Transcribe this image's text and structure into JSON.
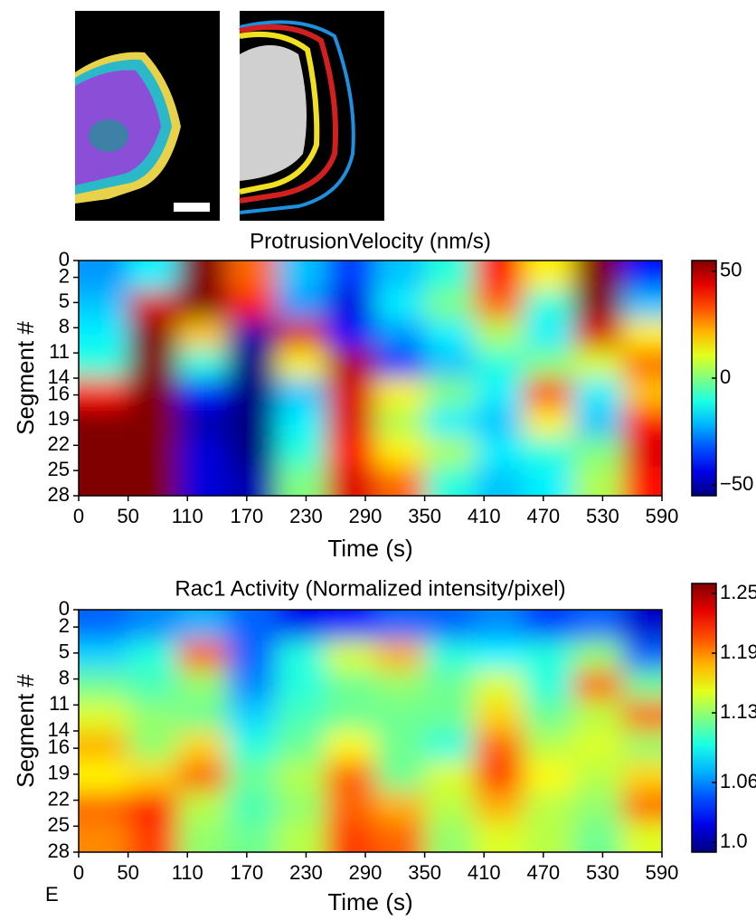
{
  "panel_label": "E",
  "chart_data": [
    {
      "type": "heatmap",
      "title": "ProtrusionVelocity (nm/s)",
      "x_label": "Time (s)",
      "y_label": "Segment #",
      "x": [
        25,
        75,
        125,
        175,
        225,
        275,
        325,
        375,
        425,
        475,
        525,
        575
      ],
      "y": [
        1.75,
        5.25,
        8.75,
        12.25,
        15.75,
        19.25,
        22.75,
        26.25
      ],
      "z": [
        [
          -25,
          -15,
          55,
          30,
          -20,
          -35,
          -20,
          -10,
          40,
          15,
          55,
          -40
        ],
        [
          -20,
          45,
          55,
          40,
          -25,
          -45,
          -15,
          0,
          30,
          -10,
          55,
          -20
        ],
        [
          -15,
          55,
          20,
          -50,
          45,
          -40,
          -25,
          -15,
          5,
          -15,
          45,
          15
        ],
        [
          -10,
          55,
          -10,
          -55,
          15,
          50,
          -40,
          -20,
          -10,
          0,
          10,
          30
        ],
        [
          40,
          55,
          -40,
          -55,
          -20,
          45,
          15,
          0,
          -15,
          35,
          -15,
          20
        ],
        [
          55,
          55,
          -50,
          -55,
          -15,
          45,
          5,
          -15,
          -20,
          15,
          -20,
          40
        ],
        [
          55,
          55,
          -45,
          -55,
          -10,
          40,
          15,
          5,
          -15,
          -10,
          0,
          45
        ],
        [
          55,
          55,
          -45,
          -50,
          0,
          45,
          30,
          -10,
          -20,
          -15,
          5,
          40
        ]
      ],
      "xlim": [
        0,
        590
      ],
      "xticks": [
        0,
        50,
        110,
        170,
        230,
        290,
        350,
        410,
        470,
        530,
        590
      ],
      "ylim": [
        0,
        28
      ],
      "yticks": [
        0,
        2,
        5,
        8,
        11,
        14,
        16,
        19,
        22,
        25,
        28
      ],
      "colormap": "jet",
      "clim": [
        -55,
        55
      ],
      "cticks": [
        50,
        0,
        {
          "value": -50,
          "label": "−50"
        }
      ]
    },
    {
      "type": "heatmap",
      "title": "Rac1 Activity (Normalized intensity/pixel)",
      "x_label": "Time (s)",
      "y_label": "Segment #",
      "x": [
        25,
        75,
        125,
        175,
        225,
        275,
        325,
        375,
        425,
        475,
        525,
        575
      ],
      "y": [
        1.75,
        5.25,
        8.75,
        12.25,
        15.75,
        19.25,
        22.75,
        26.25
      ],
      "z": [
        [
          1.05,
          1.06,
          1.07,
          1.05,
          1.02,
          1.03,
          1.05,
          1.05,
          1.06,
          1.04,
          1.05,
          1.01
        ],
        [
          1.08,
          1.1,
          1.2,
          1.05,
          1.1,
          1.15,
          1.18,
          1.1,
          1.09,
          1.1,
          1.13,
          1.05
        ],
        [
          1.12,
          1.11,
          1.13,
          1.06,
          1.1,
          1.12,
          1.13,
          1.12,
          1.15,
          1.1,
          1.2,
          1.12
        ],
        [
          1.15,
          1.13,
          1.12,
          1.08,
          1.11,
          1.12,
          1.12,
          1.12,
          1.17,
          1.12,
          1.14,
          1.2
        ],
        [
          1.18,
          1.13,
          1.17,
          1.1,
          1.12,
          1.16,
          1.12,
          1.1,
          1.2,
          1.14,
          1.15,
          1.13
        ],
        [
          1.16,
          1.17,
          1.2,
          1.12,
          1.14,
          1.2,
          1.12,
          1.15,
          1.21,
          1.16,
          1.14,
          1.17
        ],
        [
          1.2,
          1.22,
          1.14,
          1.11,
          1.13,
          1.2,
          1.18,
          1.14,
          1.18,
          1.14,
          1.13,
          1.2
        ],
        [
          1.19,
          1.21,
          1.13,
          1.12,
          1.14,
          1.21,
          1.2,
          1.13,
          1.15,
          1.14,
          1.12,
          1.15
        ]
      ],
      "xlim": [
        0,
        590
      ],
      "xticks": [
        0,
        50,
        110,
        170,
        230,
        290,
        350,
        410,
        470,
        530,
        590
      ],
      "ylim": [
        0,
        28
      ],
      "yticks": [
        0,
        2,
        5,
        8,
        11,
        14,
        16,
        19,
        22,
        25,
        28
      ],
      "colormap": "jet",
      "clim": [
        0.99,
        1.26
      ],
      "cticks": [
        1.25,
        1.19,
        1.13,
        1.06,
        {
          "value": 1,
          "label": "1.0"
        }
      ]
    }
  ]
}
